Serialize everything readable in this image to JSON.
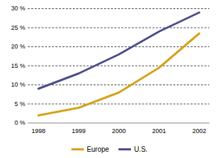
{
  "chart_data": {
    "type": "line",
    "categories": [
      "1998",
      "1999",
      "2000",
      "2001",
      "2002"
    ],
    "series": [
      {
        "name": "Europe",
        "color": "#d4a21a",
        "values": [
          2,
          4,
          8,
          14.5,
          23.5
        ]
      },
      {
        "name": "U.S.",
        "color": "#4b4b8c",
        "values": [
          9,
          13,
          18,
          24,
          29
        ]
      }
    ],
    "ylim": [
      0,
      30
    ],
    "yticks": [
      {
        "value": 0,
        "label": "0 %"
      },
      {
        "value": 5,
        "label": "5 %"
      },
      {
        "value": 10,
        "label": "10 %"
      },
      {
        "value": 15,
        "label": "15 %"
      },
      {
        "value": 20,
        "label": "20 %"
      },
      {
        "value": 25,
        "label": "25 %"
      },
      {
        "value": 30,
        "label": "30 %"
      }
    ],
    "grid": true,
    "legend": "bottom"
  }
}
